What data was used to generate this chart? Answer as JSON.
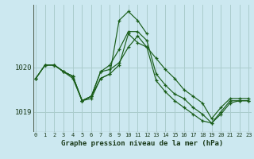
{
  "title": "Graphe pression niveau de la mer (hPa)",
  "bg_color": "#cce8f0",
  "grid_color": "#aacccc",
  "line_color": "#1a5e1a",
  "ylim": [
    1018.55,
    1021.4
  ],
  "xlim": [
    -0.3,
    23.3
  ],
  "yticks": [
    1019,
    1020
  ],
  "xticks": [
    0,
    1,
    2,
    3,
    4,
    5,
    6,
    7,
    8,
    9,
    10,
    11,
    12,
    13,
    14,
    15,
    16,
    17,
    18,
    19,
    20,
    21,
    22,
    23
  ],
  "series": [
    {
      "x": [
        0,
        1,
        2,
        3,
        4,
        5,
        6,
        7,
        8,
        9,
        10,
        11,
        12
      ],
      "y": [
        1019.75,
        1020.05,
        1020.05,
        1019.9,
        1019.8,
        1019.25,
        1019.35,
        1019.75,
        1019.85,
        1021.05,
        1021.25,
        1021.05,
        1020.75
      ]
    },
    {
      "x": [
        0,
        1,
        2,
        3,
        4,
        5,
        6,
        7,
        8,
        9,
        10,
        11,
        12,
        13,
        14,
        15,
        16,
        17,
        18,
        19,
        20,
        21,
        22,
        23
      ],
      "y": [
        1019.75,
        1020.05,
        1020.05,
        1019.9,
        1019.75,
        1019.25,
        1019.3,
        1019.75,
        1019.85,
        1020.05,
        1020.75,
        1020.55,
        1020.45,
        1020.2,
        1019.95,
        1019.75,
        1019.5,
        1019.35,
        1019.2,
        1018.85,
        1019.1,
        1019.3,
        1019.3,
        1019.3
      ]
    },
    {
      "x": [
        0,
        1,
        2,
        3,
        4,
        5,
        6,
        7,
        8,
        9,
        10,
        11,
        12,
        13,
        14,
        15,
        16,
        17,
        18,
        19,
        20,
        21,
        22,
        23
      ],
      "y": [
        1019.75,
        1020.05,
        1020.05,
        1019.9,
        1019.8,
        1019.25,
        1019.35,
        1019.9,
        1020.05,
        1020.4,
        1020.8,
        1020.8,
        1020.6,
        1019.85,
        1019.6,
        1019.4,
        1019.3,
        1019.1,
        1018.95,
        1018.75,
        1019.0,
        1019.25,
        1019.25,
        1019.25
      ]
    },
    {
      "x": [
        1,
        2,
        3,
        4,
        5,
        6,
        7,
        8,
        9,
        10,
        11,
        12,
        13,
        14,
        15,
        16,
        17,
        18,
        19,
        20,
        21,
        22,
        23
      ],
      "y": [
        1020.05,
        1020.05,
        1019.9,
        1019.8,
        1019.25,
        1019.35,
        1019.9,
        1019.95,
        1020.1,
        1020.45,
        1020.7,
        1020.45,
        1019.7,
        1019.45,
        1019.25,
        1019.1,
        1018.95,
        1018.8,
        1018.75,
        1018.95,
        1019.2,
        1019.25,
        1019.25
      ]
    }
  ]
}
